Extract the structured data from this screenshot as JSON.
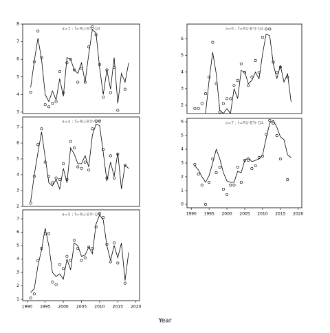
{
  "xlabel": "Year",
  "chart_data": [
    {
      "type": "line",
      "title": "a=3 ; f=RU-BTr-Q4",
      "x": [
        1991,
        1992,
        1993,
        1994,
        1995,
        1996,
        1997,
        1998,
        1999,
        2000,
        2001,
        2002,
        2003,
        2004,
        2005,
        2006,
        2007,
        2008,
        2009,
        2010,
        2011,
        2012,
        2013,
        2014,
        2015,
        2016,
        2017,
        2018
      ],
      "observed": [
        4.13,
        5.85,
        7.6,
        6.1,
        3.43,
        3.3,
        3.5,
        3.6,
        5.3,
        4.1,
        5.8,
        6.0,
        5.4,
        4.7,
        5.5,
        4.7,
        6.7,
        7.85,
        7.4,
        5.7,
        3.85,
        5.4,
        4.1,
        5.55,
        3.1,
        null,
        4.3,
        null
      ],
      "fitted": [
        4.4,
        5.9,
        7.2,
        6.0,
        4.0,
        3.6,
        4.2,
        3.7,
        4.9,
        3.9,
        6.1,
        6.0,
        5.4,
        5.2,
        5.8,
        4.7,
        6.3,
        7.7,
        7.5,
        5.5,
        4.0,
        5.4,
        4.3,
        6.1,
        3.5,
        5.2,
        4.7,
        5.8
      ],
      "xlim": [
        1988.8,
        2021
      ],
      "ylim": [
        2.92,
        8.0
      ],
      "yticks": [
        3,
        4,
        5,
        6,
        7,
        8
      ]
    },
    {
      "type": "line",
      "title": "a=4 ; f=RU-BTr-Q4",
      "x": [
        1991,
        1992,
        1993,
        1994,
        1995,
        1996,
        1997,
        1998,
        1999,
        2000,
        2001,
        2002,
        2003,
        2004,
        2005,
        2006,
        2007,
        2008,
        2009,
        2010,
        2011,
        2012,
        2013,
        2014,
        2015,
        2016,
        2017,
        2018
      ],
      "observed": [
        2.2,
        3.9,
        5.9,
        6.9,
        4.8,
        3.9,
        3.5,
        3.8,
        3.7,
        4.7,
        3.7,
        6.1,
        5.7,
        4.5,
        4.4,
        4.8,
        4.3,
        6.9,
        7.4,
        7.4,
        5.6,
        3.8,
        5.2,
        3.8,
        5.3,
        null,
        4.6,
        null
      ],
      "fitted": [
        2.3,
        4.0,
        5.4,
        6.7,
        5.1,
        3.5,
        3.3,
        3.7,
        3.1,
        4.4,
        3.5,
        5.7,
        5.3,
        4.7,
        4.7,
        5.2,
        4.5,
        6.5,
        7.2,
        7.1,
        5.4,
        3.6,
        4.8,
        3.9,
        5.4,
        3.1,
        4.6,
        4.4
      ],
      "xlim": [
        1988.8,
        2021
      ],
      "ylim": [
        2,
        7.65
      ],
      "yticks": [
        2,
        3,
        4,
        5,
        6,
        7
      ]
    },
    {
      "type": "line",
      "title": "a=5 ; f=RU-BTr-Q4",
      "x": [
        1991,
        1992,
        1993,
        1994,
        1995,
        1996,
        1997,
        1998,
        1999,
        2000,
        2001,
        2002,
        2003,
        2004,
        2005,
        2006,
        2007,
        2008,
        2009,
        2010,
        2011,
        2012,
        2013,
        2014,
        2015,
        2016,
        2017,
        2018
      ],
      "observed": [
        1.1,
        1.4,
        3.9,
        4.8,
        5.9,
        5.9,
        2.3,
        2.1,
        3.6,
        3.3,
        4.2,
        3.9,
        5.4,
        4.8,
        3.9,
        4.1,
        4.9,
        4.8,
        6.4,
        7.4,
        7.1,
        5.1,
        3.8,
        5.2,
        3.7,
        null,
        2.2,
        null
      ],
      "fitted": [
        1.5,
        1.8,
        3.5,
        4.7,
        6.3,
        5.0,
        3.0,
        2.7,
        2.9,
        2.5,
        4.0,
        3.2,
        5.2,
        5.0,
        4.2,
        4.3,
        4.9,
        4.4,
        6.6,
        7.3,
        6.9,
        5.0,
        3.9,
        5.0,
        4.1,
        5.2,
        2.4,
        4.5
      ],
      "xlim": [
        1988.8,
        2021
      ],
      "ylim": [
        0.9,
        7.67
      ],
      "yticks": [
        1,
        2,
        3,
        4,
        5,
        6,
        7
      ],
      "xticks": [
        1990,
        1995,
        2000,
        2005,
        2010,
        2015,
        2020
      ]
    },
    {
      "type": "line",
      "title": "a=6 ; f=RU-BTr-Q4",
      "x": [
        1991,
        1992,
        1993,
        1994,
        1995,
        1996,
        1997,
        1998,
        1999,
        2000,
        2001,
        2002,
        2003,
        2004,
        2005,
        2006,
        2007,
        2008,
        2009,
        2010,
        2011,
        2012,
        2013,
        2014,
        2015,
        2016,
        2017,
        2018
      ],
      "observed": [
        1.8,
        1.8,
        2.1,
        2.7,
        3.7,
        5.8,
        3.3,
        1.6,
        2.1,
        2.4,
        2.4,
        3.2,
        3.5,
        4.5,
        4.0,
        3.2,
        3.7,
        4.7,
        4.0,
        6.1,
        6.6,
        6.6,
        4.6,
        4.0,
        4.3,
        null,
        3.7,
        null
      ],
      "fitted": [
        null,
        null,
        null,
        1.5,
        3.5,
        5.2,
        3.9,
        1.7,
        1.5,
        1.8,
        1.5,
        3.0,
        2.4,
        4.1,
        4.0,
        3.3,
        3.5,
        4.0,
        3.6,
        5.1,
        6.3,
        6.2,
        4.5,
        3.6,
        4.4,
        3.4,
        3.9,
        2.2
      ],
      "xlim": [
        1988.8,
        2021
      ],
      "ylim": [
        1.5,
        6.9
      ],
      "yticks": [
        2,
        3,
        4,
        5,
        6
      ]
    },
    {
      "type": "line",
      "title": "a=7 ; f=RU-BTr-Q4",
      "x": [
        1991,
        1992,
        1993,
        1994,
        1995,
        1996,
        1997,
        1998,
        1999,
        2000,
        2001,
        2002,
        2003,
        2004,
        2005,
        2006,
        2007,
        2008,
        2009,
        2010,
        2011,
        2012,
        2013,
        2014,
        2015,
        2016,
        2017,
        2018
      ],
      "observed": [
        2.9,
        2.2,
        1.4,
        0.0,
        1.6,
        3.3,
        2.3,
        2.7,
        1.1,
        0.7,
        1.4,
        1.4,
        2.7,
        1.6,
        3.2,
        3.2,
        2.6,
        2.8,
        3.4,
        3.5,
        5.1,
        6.1,
        5.9,
        5.0,
        3.3,
        null,
        1.8,
        null
      ],
      "fitted": [
        2.8,
        2.5,
        2.0,
        1.6,
        2.1,
        3.0,
        4.0,
        3.3,
        2.3,
        1.7,
        1.6,
        1.6,
        2.4,
        2.3,
        3.2,
        3.4,
        3.1,
        3.2,
        3.3,
        3.6,
        4.8,
        5.9,
        6.1,
        5.6,
        4.9,
        4.7,
        3.6,
        3.4
      ],
      "xlim": [
        1988.8,
        2021
      ],
      "ylim": [
        -0.25,
        6.25
      ],
      "yticks": [
        0,
        1,
        2,
        3,
        4,
        5,
        6
      ],
      "xticks": [
        1990,
        1995,
        2000,
        2005,
        2010,
        2015,
        2020
      ]
    }
  ]
}
